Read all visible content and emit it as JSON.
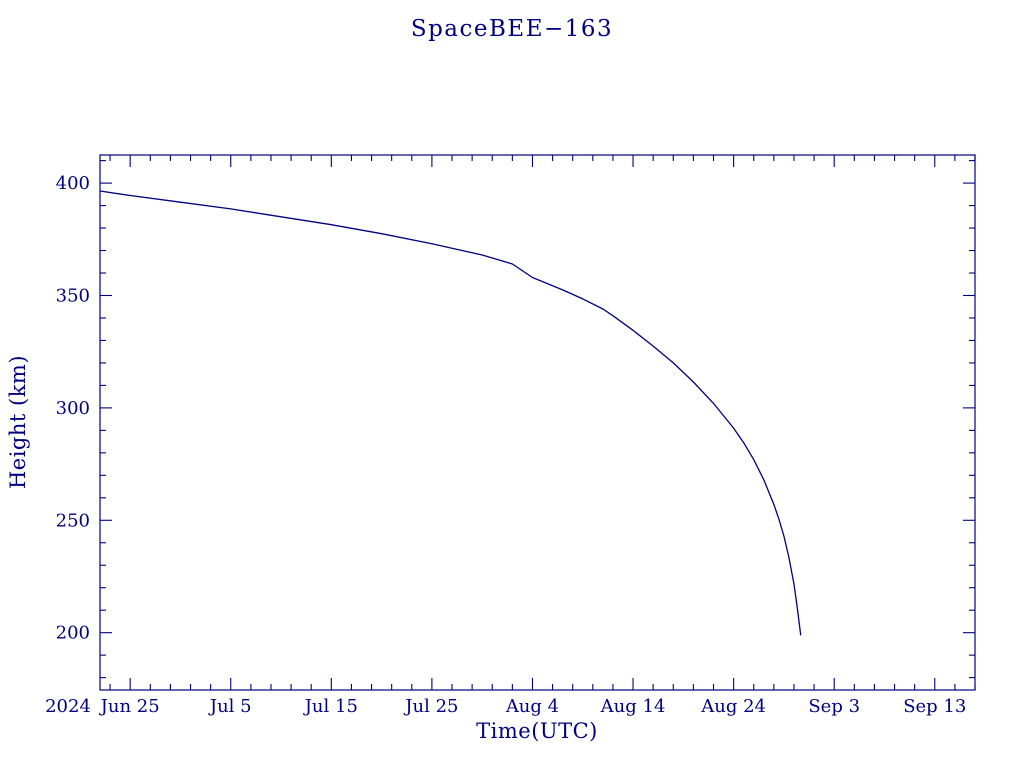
{
  "chart_data": {
    "type": "line",
    "title": "SpaceBEE−163",
    "xlabel": "Time(UTC)",
    "ylabel": "Height (km)",
    "line_color": "#000080",
    "text_color": "#000080",
    "axis_color": "#000080",
    "grid": false,
    "legend": "none",
    "x_axis": {
      "year_label": "2024",
      "range": [
        "2024-06-22",
        "2024-09-17"
      ],
      "tick_interval_days": 10,
      "minor_tick_interval_days": 2,
      "ticks": [
        {
          "date": "2024-06-25",
          "label": "Jun 25"
        },
        {
          "date": "2024-07-05",
          "label": "Jul 5"
        },
        {
          "date": "2024-07-15",
          "label": "Jul 15"
        },
        {
          "date": "2024-07-25",
          "label": "Jul 25"
        },
        {
          "date": "2024-08-04",
          "label": "Aug 4"
        },
        {
          "date": "2024-08-14",
          "label": "Aug 14"
        },
        {
          "date": "2024-08-24",
          "label": "Aug 24"
        },
        {
          "date": "2024-09-03",
          "label": "Sep 3"
        },
        {
          "date": "2024-09-13",
          "label": "Sep 13"
        }
      ]
    },
    "y_axis": {
      "range": [
        174.5,
        412.5
      ],
      "ticks": [
        200,
        250,
        300,
        350,
        400
      ],
      "minor_step": 10
    },
    "series": [
      {
        "name": "orbital-decay-height",
        "points": [
          [
            "2024-06-22",
            396.5
          ],
          [
            "2024-06-25",
            394.5
          ],
          [
            "2024-06-30",
            391.5
          ],
          [
            "2024-07-05",
            388.5
          ],
          [
            "2024-07-10",
            385.0
          ],
          [
            "2024-07-15",
            381.5
          ],
          [
            "2024-07-20",
            377.5
          ],
          [
            "2024-07-25",
            373.0
          ],
          [
            "2024-07-30",
            368.0
          ],
          [
            "2024-08-02",
            364.0
          ],
          [
            "2024-08-04",
            358.0
          ],
          [
            "2024-08-07",
            352.5
          ],
          [
            "2024-08-09",
            348.5
          ],
          [
            "2024-08-11",
            344.0
          ],
          [
            "2024-08-12",
            341.0
          ],
          [
            "2024-08-14",
            334.5
          ],
          [
            "2024-08-16",
            327.5
          ],
          [
            "2024-08-18",
            320.0
          ],
          [
            "2024-08-20",
            311.5
          ],
          [
            "2024-08-22",
            302.0
          ],
          [
            "2024-08-24",
            291.0
          ],
          [
            "2024-08-25",
            284.5
          ],
          [
            "2024-08-26",
            277.0
          ],
          [
            "2024-08-27",
            268.0
          ],
          [
            "2024-08-28",
            257.0
          ],
          [
            "2024-08-28T12:00",
            250.5
          ],
          [
            "2024-08-29",
            243.0
          ],
          [
            "2024-08-29T12:00",
            233.5
          ],
          [
            "2024-08-30",
            221.5
          ],
          [
            "2024-08-30T08:00",
            211.0
          ],
          [
            "2024-08-30T16:00",
            199.0
          ]
        ]
      }
    ]
  }
}
